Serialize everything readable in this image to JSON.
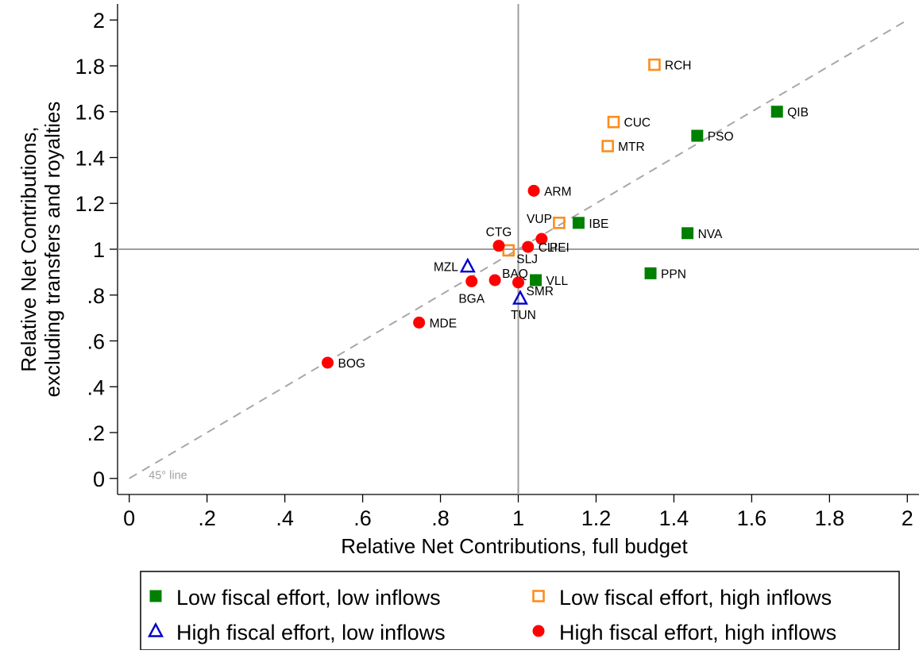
{
  "chart_data": {
    "type": "scatter",
    "xlabel": "Relative Net Contributions, full budget",
    "ylabel": [
      "Relative Net Contributions,",
      "excluding transfers and royalties"
    ],
    "xlim": [
      -0.03,
      2.03
    ],
    "ylim": [
      -0.07,
      2.07
    ],
    "x_ticks": [
      {
        "value": 0,
        "label": "0"
      },
      {
        "value": 0.2,
        "label": ".2"
      },
      {
        "value": 0.4,
        "label": ".4"
      },
      {
        "value": 0.6,
        "label": ".6"
      },
      {
        "value": 0.8,
        "label": ".8"
      },
      {
        "value": 1,
        "label": "1"
      },
      {
        "value": 1.2,
        "label": "1.2"
      },
      {
        "value": 1.4,
        "label": "1.4"
      },
      {
        "value": 1.6,
        "label": "1.6"
      },
      {
        "value": 1.8,
        "label": "1.8"
      },
      {
        "value": 2,
        "label": "2"
      }
    ],
    "y_ticks": [
      {
        "value": 0,
        "label": "0"
      },
      {
        "value": 0.2,
        "label": ".2"
      },
      {
        "value": 0.4,
        "label": ".4"
      },
      {
        "value": 0.6,
        "label": ".6"
      },
      {
        "value": 0.8,
        "label": ".8"
      },
      {
        "value": 1,
        "label": "1"
      },
      {
        "value": 1.2,
        "label": "1.2"
      },
      {
        "value": 1.4,
        "label": "1.4"
      },
      {
        "value": 1.6,
        "label": "1.6"
      },
      {
        "value": 1.8,
        "label": "1.8"
      },
      {
        "value": 2,
        "label": "2"
      }
    ],
    "reference_lines": {
      "x": 1,
      "y": 1,
      "diagonal_label": "45° line"
    },
    "grid": false,
    "legend_position": "bottom",
    "series": [
      {
        "name": "Low fiscal effort, low inflows",
        "marker": "filled-square",
        "color": "#008000",
        "points": [
          {
            "label": "QIB",
            "x": 1.665,
            "y": 1.6
          },
          {
            "label": "PSO",
            "x": 1.46,
            "y": 1.495
          },
          {
            "label": "IBE",
            "x": 1.155,
            "y": 1.115
          },
          {
            "label": "NVA",
            "x": 1.435,
            "y": 1.07
          },
          {
            "label": "PPN",
            "x": 1.34,
            "y": 0.895
          },
          {
            "label": "VLL",
            "x": 1.045,
            "y": 0.865
          }
        ]
      },
      {
        "name": "Low fiscal effort, high inflows",
        "marker": "hollow-square",
        "color": "#ff8c1a",
        "points": [
          {
            "label": "RCH",
            "x": 1.35,
            "y": 1.805
          },
          {
            "label": "CUC",
            "x": 1.245,
            "y": 1.555
          },
          {
            "label": "MTR",
            "x": 1.23,
            "y": 1.45
          },
          {
            "label": "VUP",
            "x": 1.105,
            "y": 1.115
          },
          {
            "label": "SLJ",
            "x": 0.975,
            "y": 0.995
          }
        ]
      },
      {
        "name": "High fiscal effort, low inflows",
        "marker": "hollow-triangle",
        "color": "#0000cc",
        "points": [
          {
            "label": "MZL",
            "x": 0.87,
            "y": 0.925
          },
          {
            "label": "TUN",
            "x": 1.005,
            "y": 0.785
          }
        ]
      },
      {
        "name": "High fiscal effort, high inflows",
        "marker": "filled-circle",
        "color": "#ff0000",
        "points": [
          {
            "label": "ARM",
            "x": 1.04,
            "y": 1.255
          },
          {
            "label": "PEI",
            "x": 1.06,
            "y": 1.045
          },
          {
            "label": "CTG",
            "x": 0.95,
            "y": 1.015
          },
          {
            "label": "CLI",
            "x": 1.025,
            "y": 1.01
          },
          {
            "label": "BGA",
            "x": 0.88,
            "y": 0.86
          },
          {
            "label": "BAQ",
            "x": 0.94,
            "y": 0.865
          },
          {
            "label": "SMR",
            "x": 1.0,
            "y": 0.855
          },
          {
            "label": "MDE",
            "x": 0.745,
            "y": 0.68
          },
          {
            "label": "BOG",
            "x": 0.51,
            "y": 0.505
          }
        ]
      }
    ]
  }
}
